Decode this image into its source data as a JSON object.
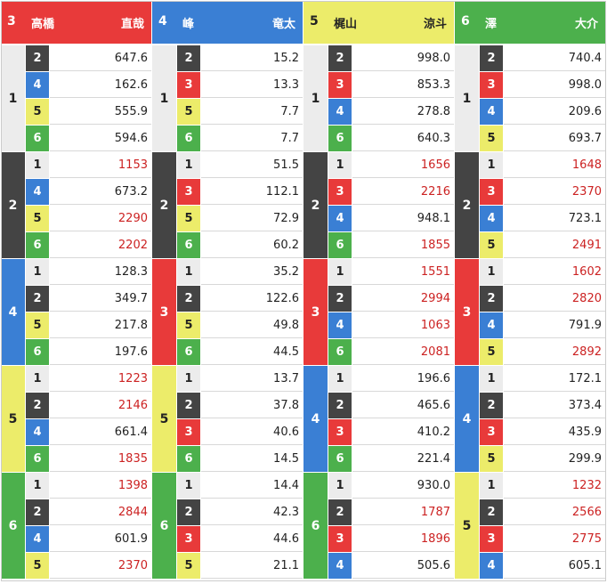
{
  "colors": {
    "1": {
      "bg": "#ececec",
      "fg": "#222222"
    },
    "2": {
      "bg": "#444444",
      "fg": "#ffffff"
    },
    "3": {
      "bg": "#e83a3a",
      "fg": "#ffffff"
    },
    "4": {
      "bg": "#3a7fd4",
      "fg": "#ffffff"
    },
    "5": {
      "bg": "#ecec6a",
      "fg": "#222222"
    },
    "6": {
      "bg": "#4cb04c",
      "fg": "#ffffff"
    }
  },
  "columns": [
    {
      "header_num": "3",
      "name_last": "高橋",
      "name_first": "直哉",
      "groups": [
        {
          "label": "1",
          "rows": [
            {
              "sub": "2",
              "value": "647.6"
            },
            {
              "sub": "4",
              "value": "162.6"
            },
            {
              "sub": "5",
              "value": "555.9"
            },
            {
              "sub": "6",
              "value": "594.6"
            }
          ]
        },
        {
          "label": "2",
          "rows": [
            {
              "sub": "1",
              "value": "1153"
            },
            {
              "sub": "4",
              "value": "673.2"
            },
            {
              "sub": "5",
              "value": "2290"
            },
            {
              "sub": "6",
              "value": "2202"
            }
          ]
        },
        {
          "label": "4",
          "rows": [
            {
              "sub": "1",
              "value": "128.3"
            },
            {
              "sub": "2",
              "value": "349.7"
            },
            {
              "sub": "5",
              "value": "217.8"
            },
            {
              "sub": "6",
              "value": "197.6"
            }
          ]
        },
        {
          "label": "5",
          "rows": [
            {
              "sub": "1",
              "value": "1223"
            },
            {
              "sub": "2",
              "value": "2146"
            },
            {
              "sub": "4",
              "value": "661.4"
            },
            {
              "sub": "6",
              "value": "1835"
            }
          ]
        },
        {
          "label": "6",
          "rows": [
            {
              "sub": "1",
              "value": "1398"
            },
            {
              "sub": "2",
              "value": "2844"
            },
            {
              "sub": "4",
              "value": "601.9"
            },
            {
              "sub": "5",
              "value": "2370"
            }
          ]
        }
      ]
    },
    {
      "header_num": "4",
      "name_last": "峰",
      "name_first": "竜太",
      "groups": [
        {
          "label": "1",
          "rows": [
            {
              "sub": "2",
              "value": "15.2"
            },
            {
              "sub": "3",
              "value": "13.3"
            },
            {
              "sub": "5",
              "value": "7.7"
            },
            {
              "sub": "6",
              "value": "7.7"
            }
          ]
        },
        {
          "label": "2",
          "rows": [
            {
              "sub": "1",
              "value": "51.5"
            },
            {
              "sub": "3",
              "value": "112.1"
            },
            {
              "sub": "5",
              "value": "72.9"
            },
            {
              "sub": "6",
              "value": "60.2"
            }
          ]
        },
        {
          "label": "3",
          "rows": [
            {
              "sub": "1",
              "value": "35.2"
            },
            {
              "sub": "2",
              "value": "122.6"
            },
            {
              "sub": "5",
              "value": "49.8"
            },
            {
              "sub": "6",
              "value": "44.5"
            }
          ]
        },
        {
          "label": "5",
          "rows": [
            {
              "sub": "1",
              "value": "13.7"
            },
            {
              "sub": "2",
              "value": "37.8"
            },
            {
              "sub": "3",
              "value": "40.6"
            },
            {
              "sub": "6",
              "value": "14.5"
            }
          ]
        },
        {
          "label": "6",
          "rows": [
            {
              "sub": "1",
              "value": "14.4"
            },
            {
              "sub": "2",
              "value": "42.3"
            },
            {
              "sub": "3",
              "value": "44.6"
            },
            {
              "sub": "5",
              "value": "21.1"
            }
          ]
        }
      ]
    },
    {
      "header_num": "5",
      "name_last": "梶山",
      "name_first": "涼斗",
      "groups": [
        {
          "label": "1",
          "rows": [
            {
              "sub": "2",
              "value": "998.0"
            },
            {
              "sub": "3",
              "value": "853.3"
            },
            {
              "sub": "4",
              "value": "278.8"
            },
            {
              "sub": "6",
              "value": "640.3"
            }
          ]
        },
        {
          "label": "2",
          "rows": [
            {
              "sub": "1",
              "value": "1656"
            },
            {
              "sub": "3",
              "value": "2216"
            },
            {
              "sub": "4",
              "value": "948.1"
            },
            {
              "sub": "6",
              "value": "1855"
            }
          ]
        },
        {
          "label": "3",
          "rows": [
            {
              "sub": "1",
              "value": "1551"
            },
            {
              "sub": "2",
              "value": "2994"
            },
            {
              "sub": "4",
              "value": "1063"
            },
            {
              "sub": "6",
              "value": "2081"
            }
          ]
        },
        {
          "label": "4",
          "rows": [
            {
              "sub": "1",
              "value": "196.6"
            },
            {
              "sub": "2",
              "value": "465.6"
            },
            {
              "sub": "3",
              "value": "410.2"
            },
            {
              "sub": "6",
              "value": "221.4"
            }
          ]
        },
        {
          "label": "6",
          "rows": [
            {
              "sub": "1",
              "value": "930.0"
            },
            {
              "sub": "2",
              "value": "1787"
            },
            {
              "sub": "3",
              "value": "1896"
            },
            {
              "sub": "4",
              "value": "505.6"
            }
          ]
        }
      ]
    },
    {
      "header_num": "6",
      "name_last": "澤",
      "name_first": "大介",
      "groups": [
        {
          "label": "1",
          "rows": [
            {
              "sub": "2",
              "value": "740.4"
            },
            {
              "sub": "3",
              "value": "998.0"
            },
            {
              "sub": "4",
              "value": "209.6"
            },
            {
              "sub": "5",
              "value": "693.7"
            }
          ]
        },
        {
          "label": "2",
          "rows": [
            {
              "sub": "1",
              "value": "1648"
            },
            {
              "sub": "3",
              "value": "2370"
            },
            {
              "sub": "4",
              "value": "723.1"
            },
            {
              "sub": "5",
              "value": "2491"
            }
          ]
        },
        {
          "label": "3",
          "rows": [
            {
              "sub": "1",
              "value": "1602"
            },
            {
              "sub": "2",
              "value": "2820"
            },
            {
              "sub": "4",
              "value": "791.9"
            },
            {
              "sub": "5",
              "value": "2892"
            }
          ]
        },
        {
          "label": "4",
          "rows": [
            {
              "sub": "1",
              "value": "172.1"
            },
            {
              "sub": "2",
              "value": "373.4"
            },
            {
              "sub": "3",
              "value": "435.9"
            },
            {
              "sub": "5",
              "value": "299.9"
            }
          ]
        },
        {
          "label": "5",
          "rows": [
            {
              "sub": "1",
              "value": "1232"
            },
            {
              "sub": "2",
              "value": "2566"
            },
            {
              "sub": "3",
              "value": "2775"
            },
            {
              "sub": "4",
              "value": "605.1"
            }
          ]
        }
      ]
    }
  ]
}
